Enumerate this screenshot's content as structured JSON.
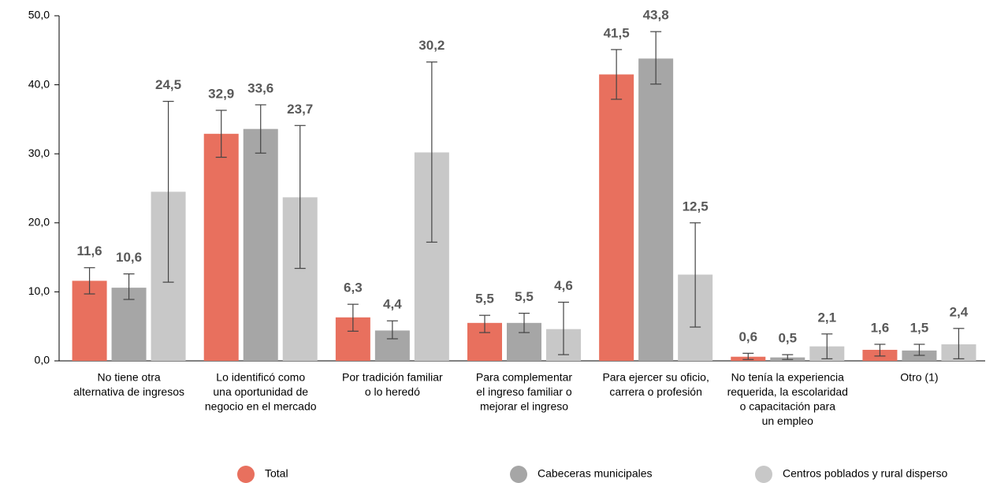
{
  "chart_data": {
    "type": "bar",
    "categories": [
      [
        "No tiene otra",
        "alternativa de ingresos"
      ],
      [
        "Lo identificó como",
        "una oportunidad de",
        "negocio en el mercado"
      ],
      [
        "Por tradición familiar",
        "o lo heredó"
      ],
      [
        "Para complementar",
        "el ingreso familiar o",
        "mejorar el ingreso"
      ],
      [
        "Para ejercer su oficio,",
        "carrera o profesión"
      ],
      [
        "No tenía la experiencia",
        "requerida, la escolaridad",
        "o capacitación para",
        "un empleo"
      ],
      [
        "Otro (1)"
      ]
    ],
    "series": [
      {
        "name": "Total",
        "color": "#e8705e",
        "values": [
          11.6,
          32.9,
          6.3,
          5.5,
          41.5,
          0.6,
          1.6
        ],
        "value_labels": [
          "11,6",
          "32,9",
          "6,3",
          "5,5",
          "41,5",
          "0,6",
          "1,6"
        ],
        "ci_low": [
          9.7,
          29.5,
          4.3,
          4.1,
          37.9,
          0.2,
          0.7
        ],
        "ci_high": [
          13.5,
          36.3,
          8.2,
          6.6,
          45.1,
          1.1,
          2.4
        ]
      },
      {
        "name": "Cabeceras municipales",
        "color": "#a6a6a6",
        "values": [
          10.6,
          33.6,
          4.4,
          5.5,
          43.8,
          0.5,
          1.5
        ],
        "value_labels": [
          "10,6",
          "33,6",
          "4,4",
          "5,5",
          "43,8",
          "0,5",
          "1,5"
        ],
        "ci_low": [
          8.9,
          30.1,
          3.2,
          4.1,
          40.1,
          0.2,
          0.8
        ],
        "ci_high": [
          12.6,
          37.1,
          5.8,
          6.9,
          47.7,
          0.9,
          2.4
        ]
      },
      {
        "name": "Centros poblados y rural disperso",
        "color": "#c8c8c8",
        "values": [
          24.5,
          23.7,
          30.2,
          4.6,
          12.5,
          2.1,
          2.4
        ],
        "value_labels": [
          "24,5",
          "23,7",
          "30,2",
          "4,6",
          "12,5",
          "2,1",
          "2,4"
        ],
        "ci_low": [
          11.4,
          13.4,
          17.2,
          0.9,
          4.9,
          0.3,
          0.3
        ],
        "ci_high": [
          37.6,
          34.1,
          43.3,
          8.5,
          20.0,
          3.9,
          4.7
        ]
      }
    ],
    "ylim": [
      0,
      50
    ],
    "yticks": [
      {
        "value": 0,
        "label": "0,0"
      },
      {
        "value": 10,
        "label": "10,0"
      },
      {
        "value": 20,
        "label": "20,0"
      },
      {
        "value": 30,
        "label": "30,0"
      },
      {
        "value": 40,
        "label": "40,0"
      },
      {
        "value": 50,
        "label": "50,0"
      }
    ],
    "legend": "bottom"
  }
}
